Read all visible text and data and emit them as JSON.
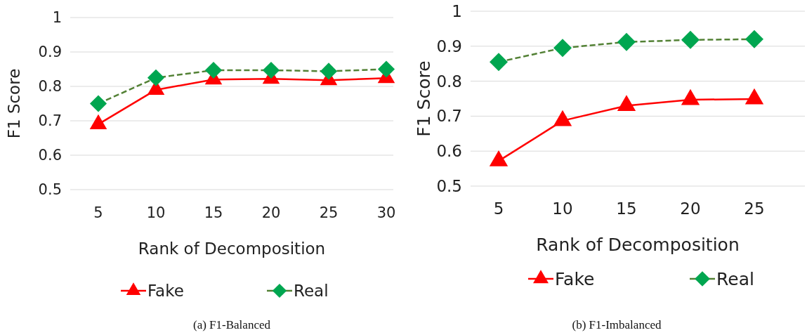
{
  "chart_data": [
    {
      "type": "line",
      "xlabel": "Rank of Decomposition",
      "ylabel": "F1 Score",
      "categories": [
        "5",
        "10",
        "15",
        "20",
        "25",
        "30"
      ],
      "ylim": [
        0.5,
        1
      ],
      "yticks": [
        0.5,
        0.6,
        0.7,
        0.8,
        0.9,
        1
      ],
      "grid": "y",
      "legend": "bottom",
      "annotations": [
        "(a)  F1-Balanced"
      ],
      "series": [
        {
          "name": "Fake",
          "color": "#ff0000",
          "marker": "triangle",
          "line_style": "solid",
          "values": [
            0.69,
            0.79,
            0.82,
            0.822,
            0.818,
            0.824
          ]
        },
        {
          "name": "Real",
          "color": "#00a650",
          "marker": "diamond",
          "line_style": "dashed",
          "values": [
            0.75,
            0.825,
            0.847,
            0.847,
            0.844,
            0.85
          ]
        }
      ]
    },
    {
      "type": "line",
      "xlabel": "Rank of Decomposition",
      "ylabel": "F1 Score",
      "categories": [
        "5",
        "10",
        "15",
        "20",
        "25"
      ],
      "ylim": [
        0.5,
        1
      ],
      "yticks": [
        0.5,
        0.6,
        0.7,
        0.8,
        0.9,
        1
      ],
      "grid": "y",
      "legend": "bottom",
      "annotations": [
        "(b)  F1-Imbalanced"
      ],
      "series": [
        {
          "name": "Fake",
          "color": "#ff0000",
          "marker": "triangle",
          "line_style": "solid",
          "values": [
            0.572,
            0.687,
            0.73,
            0.747,
            0.749
          ]
        },
        {
          "name": "Real",
          "color": "#00a650",
          "marker": "diamond",
          "line_style": "dashed",
          "values": [
            0.855,
            0.895,
            0.912,
            0.918,
            0.92
          ]
        }
      ]
    }
  ]
}
